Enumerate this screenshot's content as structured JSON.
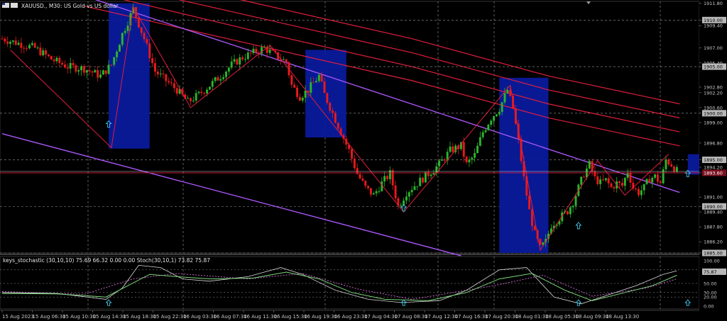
{
  "header": {
    "symbol": "XAUUSD.",
    "timeframe": "M30",
    "description": "US Gold vs US dollar",
    "title_text": "XAUUSD., M30:  US Gold vs US dollar"
  },
  "price_axis": {
    "min": 1885.0,
    "max": 1912.0,
    "labels": [
      {
        "v": 1911.8,
        "text": "1911.80",
        "boxed": false
      },
      {
        "v": 1910.0,
        "text": "1910.00",
        "boxed": true
      },
      {
        "v": 1909.4,
        "text": "1909.40",
        "boxed": false
      },
      {
        "v": 1907.0,
        "text": "1907.00",
        "boxed": false
      },
      {
        "v": 1905.4,
        "text": "1905.40",
        "boxed": false
      },
      {
        "v": 1905.0,
        "text": "1905.00",
        "boxed": true
      },
      {
        "v": 1902.8,
        "text": "1902.80",
        "boxed": false
      },
      {
        "v": 1902.2,
        "text": "1902.20",
        "boxed": false
      },
      {
        "v": 1900.6,
        "text": "1900.60",
        "boxed": false
      },
      {
        "v": 1900.0,
        "text": "1900.00",
        "boxed": true
      },
      {
        "v": 1899.0,
        "text": "1899.00",
        "boxed": false
      },
      {
        "v": 1896.8,
        "text": "1896.80",
        "boxed": false
      },
      {
        "v": 1895.0,
        "text": "1895.00",
        "boxed": true
      },
      {
        "v": 1894.2,
        "text": "1894.20",
        "boxed": false
      },
      {
        "v": 1893.6,
        "text": "1893.60",
        "boxed": true,
        "current": true
      },
      {
        "v": 1891.0,
        "text": "1891.00",
        "boxed": false
      },
      {
        "v": 1890.0,
        "text": "1890.00",
        "boxed": true
      },
      {
        "v": 1889.4,
        "text": "1889.40",
        "boxed": false
      },
      {
        "v": 1887.8,
        "text": "1887.80",
        "boxed": false
      },
      {
        "v": 1886.2,
        "text": "1886.20",
        "boxed": false
      },
      {
        "v": 1885.0,
        "text": "1885.00",
        "boxed": true
      }
    ],
    "horizontal_levels": [
      1910.0,
      1905.0,
      1900.0,
      1895.0,
      1890.0,
      1885.0
    ],
    "current_price": 1893.6
  },
  "time_axis": {
    "labels": [
      "15 Aug 2023",
      "15 Aug 06:30",
      "15 Aug 10:30",
      "15 Aug 14:30",
      "15 Aug 18:30",
      "15 Aug 22:30",
      "16 Aug 03:30",
      "16 Aug 07:30",
      "16 Aug 11:30",
      "16 Aug 15:30",
      "16 Aug 19:30",
      "16 Aug 23:30",
      "17 Aug 04:30",
      "17 Aug 08:30",
      "17 Aug 12:30",
      "17 Aug 16:30",
      "17 Aug 20:30",
      "18 Aug 01:30",
      "18 Aug 05:30",
      "18 Aug 09:30",
      "18 Aug 13:30"
    ]
  },
  "indicator": {
    "title_text": "keys_stochastic (30,10,10) 75.69 66.32 0.00 0.00 Stoch(30,10,1) 73.82 75.87",
    "levels": [
      {
        "v": 100,
        "text": "100.00"
      },
      {
        "v": 80,
        "text": "80.00"
      },
      {
        "v": 75.87,
        "text": "75.87"
      },
      {
        "v": 50,
        "text": "50.00"
      },
      {
        "v": 30,
        "text": "30.00"
      },
      {
        "v": 20,
        "text": "20.00"
      },
      {
        "v": 0,
        "text": "0.00"
      }
    ]
  },
  "chart_data": {
    "type": "candlestick",
    "symbol": "XAUUSD.",
    "timeframe": "M30",
    "ylim": [
      1885.0,
      1912.0
    ],
    "close_path": [
      [
        0,
        1908.0
      ],
      [
        6,
        1907.5
      ],
      [
        12,
        1907.0
      ],
      [
        18,
        1905.8
      ],
      [
        24,
        1905.0
      ],
      [
        30,
        1904.8
      ],
      [
        36,
        1904.0
      ],
      [
        40,
        1905.2
      ],
      [
        44,
        1908.5
      ],
      [
        48,
        1911.2
      ],
      [
        52,
        1908.0
      ],
      [
        56,
        1904.5
      ],
      [
        60,
        1903.5
      ],
      [
        64,
        1902.5
      ],
      [
        68,
        1901.2
      ],
      [
        72,
        1902.0
      ],
      [
        76,
        1903.0
      ],
      [
        80,
        1904.0
      ],
      [
        84,
        1905.2
      ],
      [
        88,
        1906.0
      ],
      [
        92,
        1906.5
      ],
      [
        96,
        1907.0
      ],
      [
        100,
        1906.2
      ],
      [
        104,
        1905.5
      ],
      [
        106,
        1903.0
      ],
      [
        109,
        1901.8
      ],
      [
        112,
        1902.5
      ],
      [
        116,
        1904.0
      ],
      [
        118,
        1902.0
      ],
      [
        121,
        1900.0
      ],
      [
        124,
        1898.0
      ],
      [
        127,
        1896.0
      ],
      [
        130,
        1893.5
      ],
      [
        133,
        1892.0
      ],
      [
        136,
        1891.2
      ],
      [
        139,
        1892.5
      ],
      [
        142,
        1893.5
      ],
      [
        145,
        1890.0
      ],
      [
        148,
        1891.5
      ],
      [
        152,
        1892.5
      ],
      [
        156,
        1893.5
      ],
      [
        160,
        1894.5
      ],
      [
        164,
        1896.0
      ],
      [
        168,
        1896.5
      ],
      [
        170,
        1894.5
      ],
      [
        173,
        1895.5
      ],
      [
        176,
        1898.0
      ],
      [
        179,
        1899.5
      ],
      [
        182,
        1900.5
      ],
      [
        185,
        1902.5
      ],
      [
        187,
        1900.5
      ],
      [
        189,
        1897.0
      ],
      [
        191,
        1893.0
      ],
      [
        193,
        1889.5
      ],
      [
        195,
        1887.0
      ],
      [
        197,
        1885.5
      ],
      [
        199,
        1886.2
      ],
      [
        201,
        1888.0
      ],
      [
        203,
        1888.5
      ],
      [
        205,
        1889.0
      ],
      [
        207,
        1889.5
      ],
      [
        209,
        1890.5
      ],
      [
        211,
        1892.0
      ],
      [
        213,
        1893.5
      ],
      [
        215,
        1894.5
      ],
      [
        217,
        1893.0
      ],
      [
        219,
        1892.5
      ],
      [
        221,
        1892.8
      ],
      [
        223,
        1892.0
      ],
      [
        225,
        1892.5
      ],
      [
        227,
        1892.2
      ],
      [
        229,
        1893.8
      ],
      [
        231,
        1892.0
      ],
      [
        233,
        1891.5
      ],
      [
        235,
        1892.0
      ],
      [
        237,
        1893.0
      ],
      [
        239,
        1893.2
      ],
      [
        241,
        1892.5
      ],
      [
        243,
        1895.0
      ],
      [
        245,
        1894.5
      ],
      [
        247,
        1893.8
      ]
    ],
    "total_bars": 248,
    "zigzag": [
      [
        3,
        1906.8
      ],
      [
        40,
        1896.3
      ],
      [
        48,
        1911.4
      ],
      [
        69,
        1900.6
      ],
      [
        98,
        1907.3
      ],
      [
        126,
        1897.0
      ],
      [
        147,
        1889.4
      ],
      [
        186,
        1903.0
      ],
      [
        197,
        1885.3
      ],
      [
        218,
        1894.9
      ],
      [
        228,
        1891.2
      ],
      [
        244,
        1895.6
      ]
    ],
    "channel_lines": [
      {
        "color": "#a855f7",
        "points": [
          [
            0,
            1915.5
          ],
          [
            248,
            1891.5
          ]
        ]
      },
      {
        "color": "#a855f7",
        "points": [
          [
            0,
            1897.8
          ],
          [
            168,
            1884.7
          ]
        ]
      }
    ],
    "moving_averages": [
      {
        "color": "#e01e3c",
        "points": [
          [
            30,
            1916.0
          ],
          [
            90,
            1912.0
          ],
          [
            150,
            1908.0
          ],
          [
            200,
            1904.0
          ],
          [
            248,
            1901.0
          ]
        ]
      },
      {
        "color": "#e01e3c",
        "points": [
          [
            30,
            1914.5
          ],
          [
            90,
            1910.5
          ],
          [
            150,
            1906.5
          ],
          [
            200,
            1902.5
          ],
          [
            248,
            1899.5
          ]
        ]
      },
      {
        "color": "#e01e3c",
        "points": [
          [
            30,
            1913.2
          ],
          [
            90,
            1909.0
          ],
          [
            150,
            1905.0
          ],
          [
            200,
            1901.0
          ],
          [
            248,
            1898.0
          ]
        ]
      },
      {
        "color": "#e01e3c",
        "points": [
          [
            30,
            1911.5
          ],
          [
            90,
            1907.5
          ],
          [
            150,
            1903.5
          ],
          [
            200,
            1899.5
          ],
          [
            248,
            1896.5
          ]
        ]
      }
    ],
    "zones": [
      {
        "color": "#0a1a9c",
        "x1": 39,
        "x2": 54,
        "top": 1911.8,
        "bottom": 1896.2
      },
      {
        "color": "#0a1a9c",
        "x1": 111,
        "x2": 126,
        "top": 1906.8,
        "bottom": 1897.4
      },
      {
        "color": "#0a1a9c",
        "x1": 182,
        "x2": 200,
        "top": 1903.8,
        "bottom": 1885.0
      },
      {
        "color": "#0a1a9c",
        "x1": 251,
        "x2": 270,
        "top": 1895.6,
        "bottom": 1893.4
      }
    ],
    "arrows": [
      {
        "x": 39,
        "price": 1898.8
      },
      {
        "x": 147,
        "price": 1889.8
      },
      {
        "x": 211,
        "price": 1887.9
      },
      {
        "x": 251,
        "price": 1893.5
      }
    ],
    "stochastic": {
      "ylim": [
        0,
        100
      ],
      "main": [
        [
          0,
          30
        ],
        [
          20,
          28
        ],
        [
          38,
          15
        ],
        [
          44,
          40
        ],
        [
          50,
          90
        ],
        [
          58,
          85
        ],
        [
          66,
          60
        ],
        [
          76,
          55
        ],
        [
          90,
          65
        ],
        [
          102,
          85
        ],
        [
          110,
          70
        ],
        [
          122,
          35
        ],
        [
          134,
          15
        ],
        [
          146,
          8
        ],
        [
          160,
          12
        ],
        [
          170,
          35
        ],
        [
          182,
          80
        ],
        [
          192,
          85
        ],
        [
          202,
          20
        ],
        [
          212,
          5
        ],
        [
          222,
          25
        ],
        [
          232,
          45
        ],
        [
          242,
          70
        ],
        [
          247,
          78
        ]
      ],
      "signal": [
        [
          0,
          28
        ],
        [
          20,
          27
        ],
        [
          38,
          20
        ],
        [
          46,
          45
        ],
        [
          54,
          70
        ],
        [
          64,
          65
        ],
        [
          76,
          60
        ],
        [
          92,
          62
        ],
        [
          104,
          75
        ],
        [
          116,
          60
        ],
        [
          128,
          30
        ],
        [
          140,
          15
        ],
        [
          156,
          12
        ],
        [
          170,
          30
        ],
        [
          182,
          60
        ],
        [
          194,
          72
        ],
        [
          206,
          35
        ],
        [
          216,
          12
        ],
        [
          228,
          30
        ],
        [
          238,
          45
        ],
        [
          247,
          68
        ]
      ],
      "dotted": [
        [
          0,
          32
        ],
        [
          30,
          26
        ],
        [
          48,
          60
        ],
        [
          64,
          72
        ],
        [
          90,
          60
        ],
        [
          110,
          72
        ],
        [
          130,
          38
        ],
        [
          150,
          15
        ],
        [
          180,
          45
        ],
        [
          198,
          68
        ],
        [
          216,
          22
        ],
        [
          236,
          40
        ],
        [
          247,
          60
        ]
      ],
      "markers": [
        39,
        147,
        211,
        251
      ]
    }
  },
  "colors": {
    "background": "#000000",
    "bull_candle": "#2bb52b",
    "bear_candle": "#e8191c",
    "grid": "#9a9a9a",
    "zone": "#0a1a9c",
    "channel": "#a855f7",
    "ma": "#e01e3c",
    "zigzag": "#e01e3c",
    "stoch_main": "#d8d8d8",
    "stoch_signal": "#7cd67c",
    "stoch_dotted": "#d06ad0",
    "arrow": "#40c8e8",
    "current_line": "#e01e3c"
  }
}
